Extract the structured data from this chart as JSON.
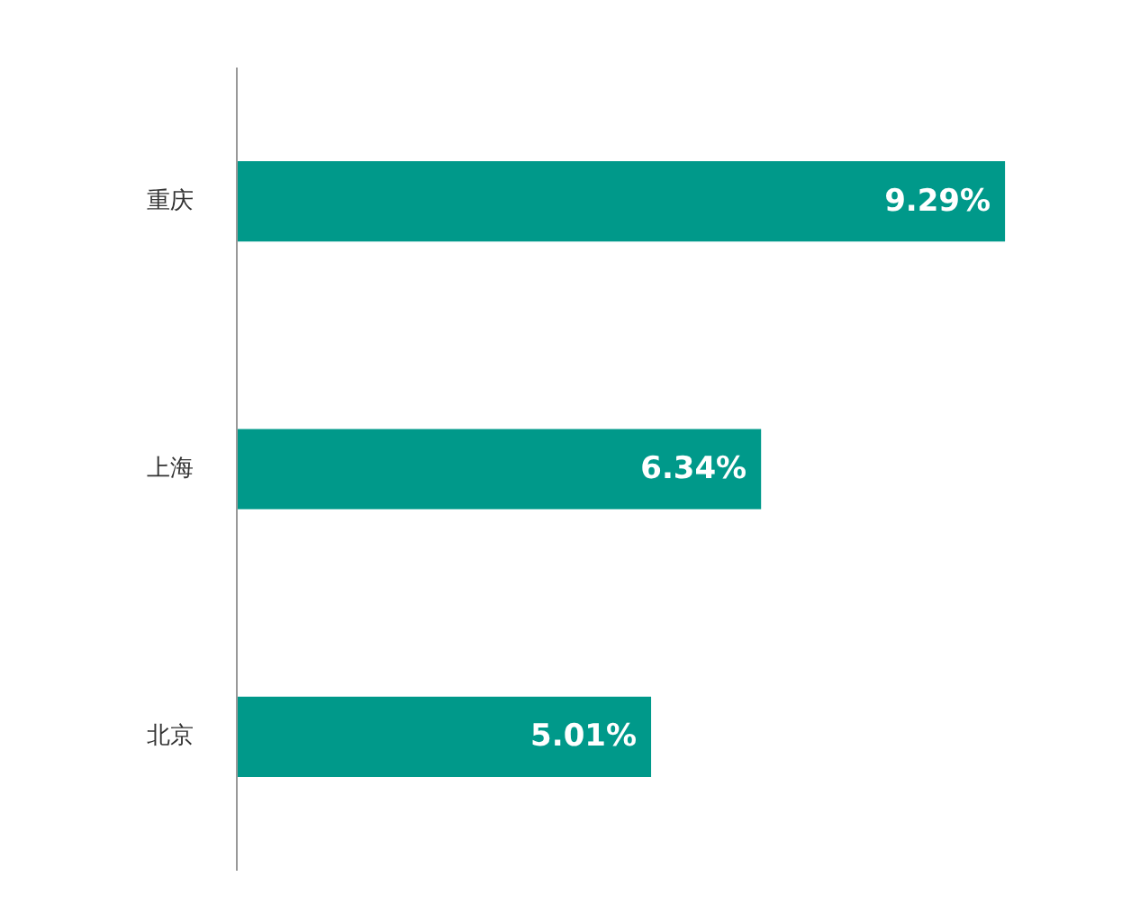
{
  "chart_data": {
    "type": "bar",
    "orientation": "horizontal",
    "categories": [
      "重庆",
      "上海",
      "北京"
    ],
    "values": [
      9.29,
      6.34,
      5.01
    ],
    "value_labels": [
      "9.29%",
      "6.34%",
      "5.01%"
    ],
    "color": "#00998a",
    "grid": false,
    "tick_labels": "y"
  }
}
